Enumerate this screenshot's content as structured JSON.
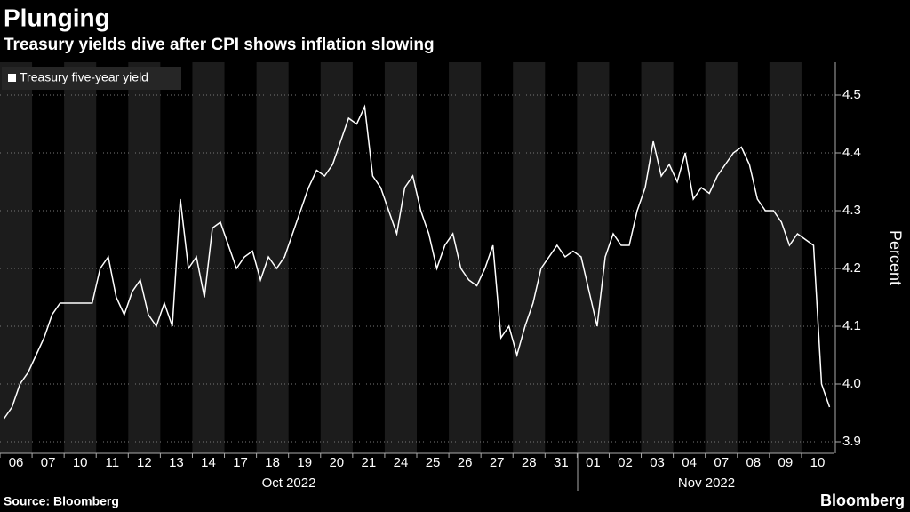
{
  "chart_data": {
    "type": "line",
    "title": "Plunging",
    "subtitle": "Treasury yields dive after CPI shows inflation slowing",
    "y_axis_label": "Percent",
    "categories": [
      "06",
      "07",
      "10",
      "11",
      "12",
      "13",
      "14",
      "17",
      "18",
      "19",
      "20",
      "21",
      "24",
      "25",
      "26",
      "27",
      "28",
      "31",
      "01",
      "02",
      "03",
      "04",
      "07",
      "08",
      "09",
      "10"
    ],
    "x_groups": [
      "Oct 2022",
      "Nov 2022"
    ],
    "series": [
      {
        "name": "Treasury five-year yield",
        "color": "#ffffff",
        "values": [
          [
            3.94,
            3.96,
            4.0,
            4.02
          ],
          [
            4.05,
            4.08,
            4.12,
            4.14
          ],
          [
            4.14,
            4.14,
            4.14,
            4.14
          ],
          [
            4.2,
            4.22,
            4.15,
            4.12
          ],
          [
            4.16,
            4.18,
            4.12,
            4.1
          ],
          [
            4.14,
            4.1,
            4.32,
            4.2
          ],
          [
            4.22,
            4.15,
            4.27,
            4.28
          ],
          [
            4.24,
            4.2,
            4.22,
            4.23
          ],
          [
            4.18,
            4.22,
            4.2,
            4.22
          ],
          [
            4.26,
            4.3,
            4.34,
            4.37
          ],
          [
            4.36,
            4.38,
            4.42,
            4.46
          ],
          [
            4.45,
            4.48,
            4.36,
            4.34
          ],
          [
            4.3,
            4.26,
            4.34,
            4.36
          ],
          [
            4.3,
            4.26,
            4.2,
            4.24
          ],
          [
            4.26,
            4.2,
            4.18,
            4.17
          ],
          [
            4.2,
            4.24,
            4.08,
            4.1
          ],
          [
            4.05,
            4.1,
            4.14,
            4.2
          ],
          [
            4.22,
            4.24,
            4.22,
            4.23
          ],
          [
            4.22,
            4.16,
            4.1,
            4.22
          ],
          [
            4.26,
            4.24,
            4.24,
            4.3
          ],
          [
            4.34,
            4.42,
            4.36,
            4.38
          ],
          [
            4.35,
            4.4,
            4.32,
            4.34
          ],
          [
            4.33,
            4.36,
            4.38,
            4.4
          ],
          [
            4.41,
            4.38,
            4.32,
            4.3
          ],
          [
            4.3,
            4.28,
            4.24,
            4.26
          ],
          [
            4.25,
            4.24,
            4.0,
            3.96
          ]
        ]
      }
    ],
    "ylim": [
      3.9,
      4.55
    ],
    "yticks": [
      {
        "value": 3.9,
        "label": "3.9"
      },
      {
        "value": 4.0,
        "label": "4.0"
      },
      4.1,
      4.2,
      4.3,
      4.4,
      4.5
    ],
    "grid": true,
    "source": "Source: Bloomberg",
    "brand": "Bloomberg"
  }
}
